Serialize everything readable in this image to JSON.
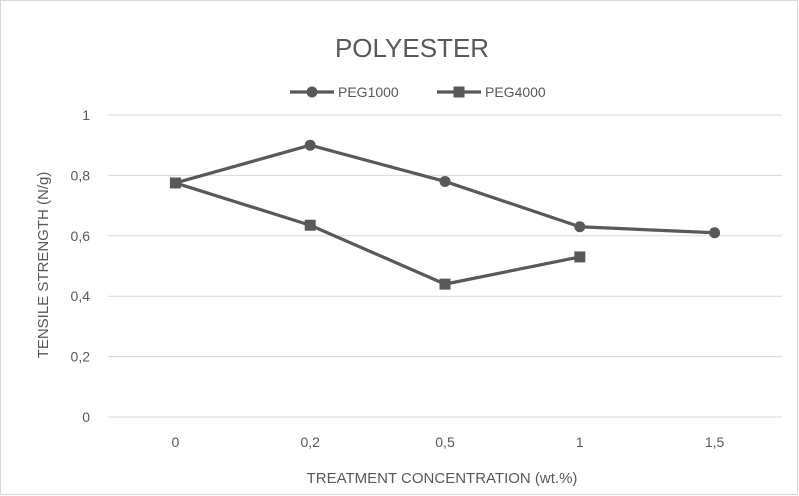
{
  "chart_data": {
    "type": "line",
    "title": "POLYESTER",
    "xlabel": "TREATMENT CONCENTRATION (wt.%)",
    "ylabel": "TENSILE STRENGTH (N/g)",
    "categories": [
      "0",
      "0,2",
      "0,5",
      "1",
      "1,5"
    ],
    "yticks": [
      "0",
      "0,2",
      "0,4",
      "0,6",
      "0,8",
      "1"
    ],
    "ylim": [
      0,
      1
    ],
    "grid": true,
    "legend_position": "top",
    "series": [
      {
        "name": "PEG1000",
        "marker": "circle",
        "values": [
          0.775,
          0.9,
          0.78,
          0.63,
          0.61
        ]
      },
      {
        "name": "PEG4000",
        "marker": "square",
        "values": [
          0.775,
          0.635,
          0.44,
          0.53,
          null
        ]
      }
    ],
    "colors": {
      "line": "#595959",
      "grid": "#d9d9d9",
      "text": "#595959",
      "border": "#d9d9d9"
    }
  }
}
